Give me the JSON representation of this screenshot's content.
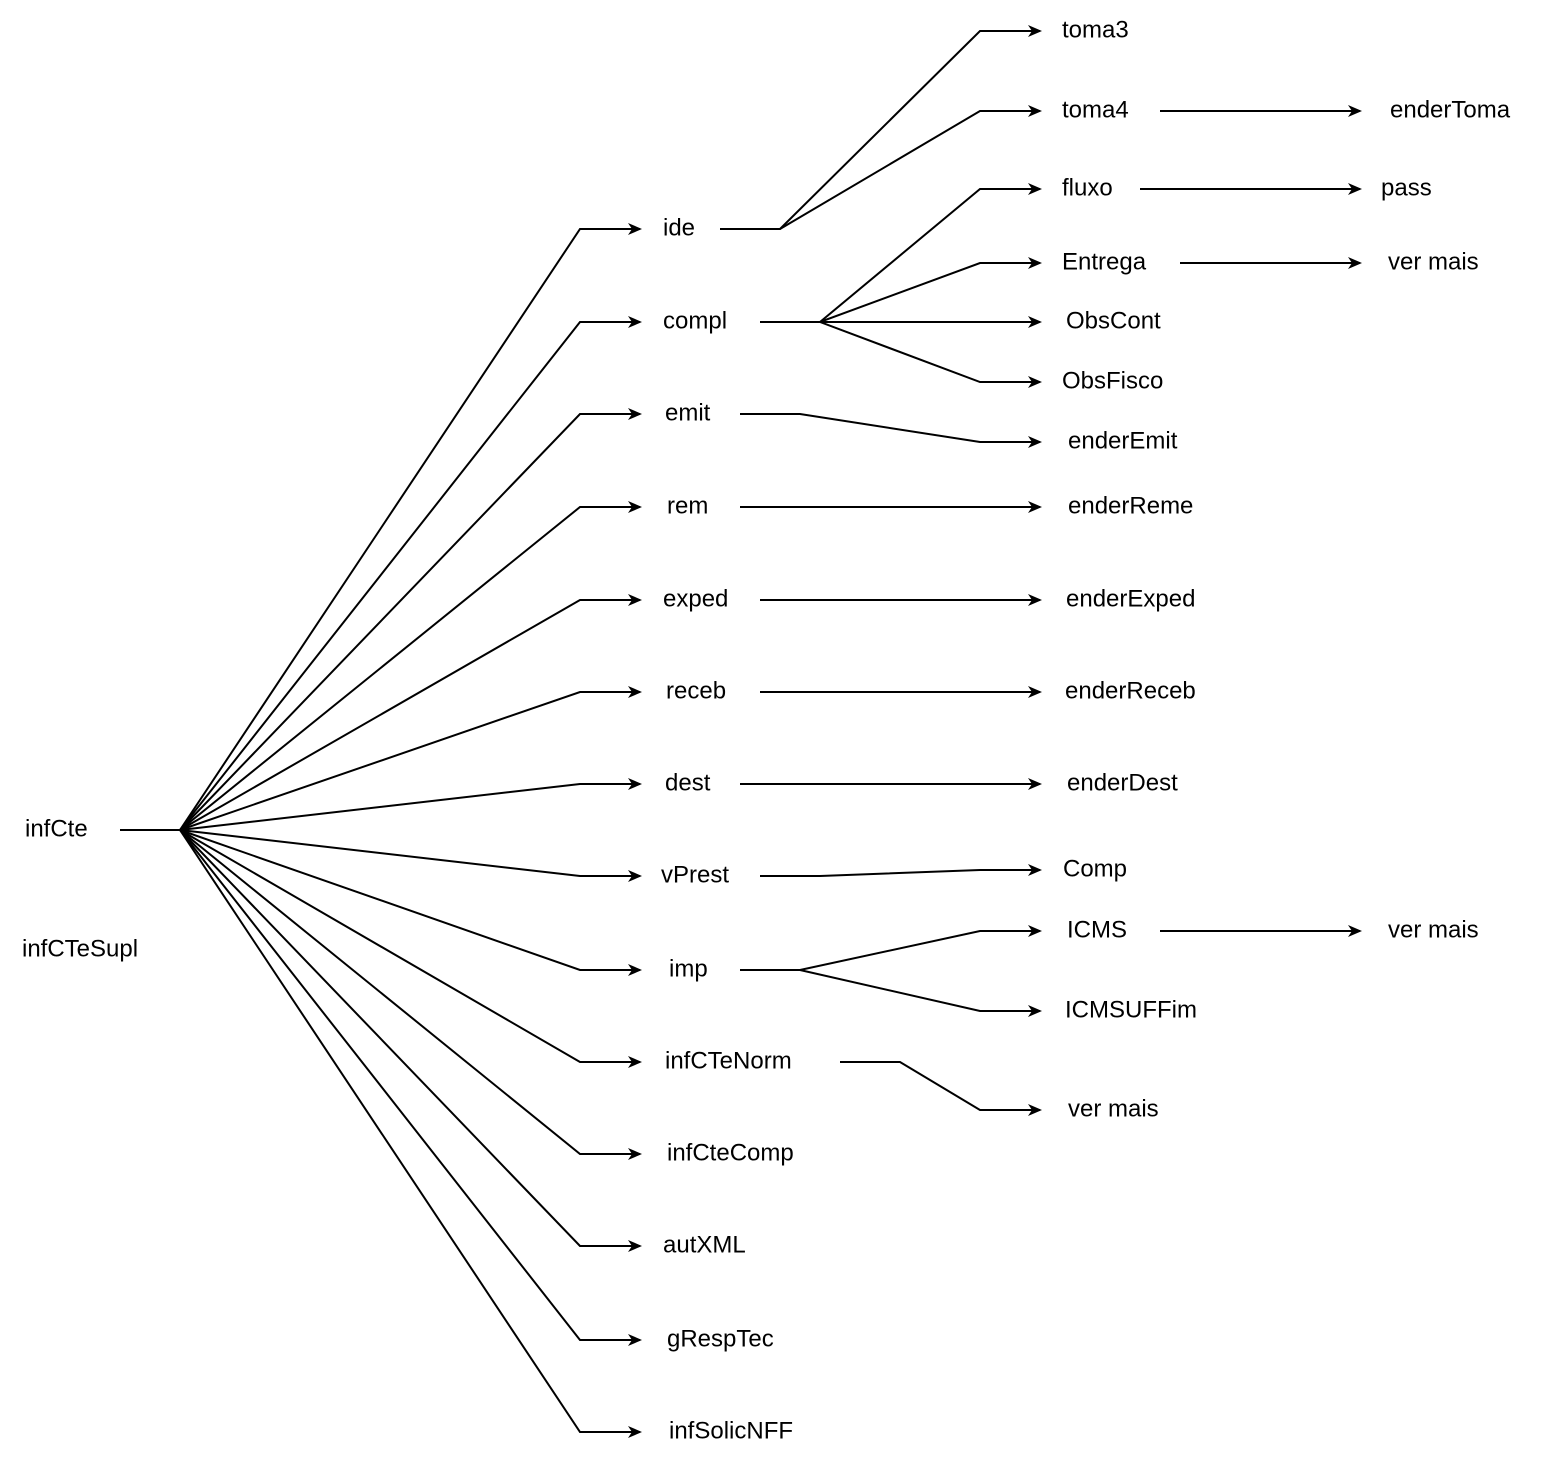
{
  "diagram": {
    "type": "tree",
    "nodes": {
      "infCte": "infCte",
      "infCTeSupl": "infCTeSupl",
      "ide": "ide",
      "compl": "compl",
      "emit": "emit",
      "rem": "rem",
      "exped": "exped",
      "receb": "receb",
      "dest": "dest",
      "vPrest": "vPrest",
      "imp": "imp",
      "infCTeNorm": "infCTeNorm",
      "infCteComp": "infCteComp",
      "autXML": "autXML",
      "gRespTec": "gRespTec",
      "infSolicNFF": "infSolicNFF",
      "toma3": "toma3",
      "toma4": "toma4",
      "enderToma": "enderToma",
      "fluxo": "fluxo",
      "pass": "pass",
      "Entrega": "Entrega",
      "ver_mais_entrega": "ver mais",
      "ObsCont": "ObsCont",
      "ObsFisco": "ObsFisco",
      "enderEmit": "enderEmit",
      "enderReme": "enderReme",
      "enderExped": "enderExped",
      "enderReceb": "enderReceb",
      "enderDest": "enderDest",
      "Comp": "Comp",
      "ICMS": "ICMS",
      "ver_mais_icms": "ver mais",
      "ICMSUFFim": "ICMSUFFim",
      "ver_mais_infctenorm": "ver mais"
    },
    "edges": [
      [
        "infCte",
        "ide"
      ],
      [
        "infCte",
        "compl"
      ],
      [
        "infCte",
        "emit"
      ],
      [
        "infCte",
        "rem"
      ],
      [
        "infCte",
        "exped"
      ],
      [
        "infCte",
        "receb"
      ],
      [
        "infCte",
        "dest"
      ],
      [
        "infCte",
        "vPrest"
      ],
      [
        "infCte",
        "imp"
      ],
      [
        "infCte",
        "infCTeNorm"
      ],
      [
        "infCte",
        "infCteComp"
      ],
      [
        "infCte",
        "autXML"
      ],
      [
        "infCte",
        "gRespTec"
      ],
      [
        "infCte",
        "infSolicNFF"
      ],
      [
        "ide",
        "toma3"
      ],
      [
        "ide",
        "toma4"
      ],
      [
        "toma4",
        "enderToma"
      ],
      [
        "compl",
        "fluxo"
      ],
      [
        "compl",
        "Entrega"
      ],
      [
        "compl",
        "ObsCont"
      ],
      [
        "compl",
        "ObsFisco"
      ],
      [
        "fluxo",
        "pass"
      ],
      [
        "Entrega",
        "ver_mais_entrega"
      ],
      [
        "emit",
        "enderEmit"
      ],
      [
        "rem",
        "enderReme"
      ],
      [
        "exped",
        "enderExped"
      ],
      [
        "receb",
        "enderReceb"
      ],
      [
        "dest",
        "enderDest"
      ],
      [
        "vPrest",
        "Comp"
      ],
      [
        "imp",
        "ICMS"
      ],
      [
        "imp",
        "ICMSUFFim"
      ],
      [
        "ICMS",
        "ver_mais_icms"
      ],
      [
        "infCTeNorm",
        "ver_mais_infctenorm"
      ]
    ]
  }
}
